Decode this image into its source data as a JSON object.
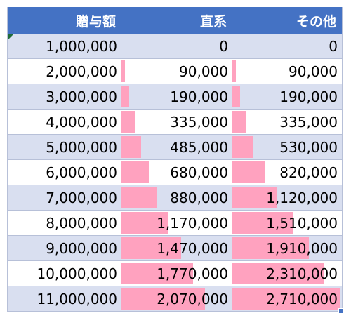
{
  "headers": [
    "贈与額",
    "直系",
    "その他"
  ],
  "max_bar_value": 2710000,
  "colors": {
    "header": "#4472c4",
    "band": "#d9dff0",
    "bar": "#ffa2bf"
  },
  "rows": [
    {
      "gift": "1,000,000",
      "direct": "0",
      "other": "0",
      "direct_value": 0,
      "other_value": 0
    },
    {
      "gift": "2,000,000",
      "direct": "90,000",
      "other": "90,000",
      "direct_value": 90000,
      "other_value": 90000
    },
    {
      "gift": "3,000,000",
      "direct": "190,000",
      "other": "190,000",
      "direct_value": 190000,
      "other_value": 190000
    },
    {
      "gift": "4,000,000",
      "direct": "335,000",
      "other": "335,000",
      "direct_value": 335000,
      "other_value": 335000
    },
    {
      "gift": "5,000,000",
      "direct": "485,000",
      "other": "530,000",
      "direct_value": 485000,
      "other_value": 530000
    },
    {
      "gift": "6,000,000",
      "direct": "680,000",
      "other": "820,000",
      "direct_value": 680000,
      "other_value": 820000
    },
    {
      "gift": "7,000,000",
      "direct": "880,000",
      "other": "1,120,000",
      "direct_value": 880000,
      "other_value": 1120000
    },
    {
      "gift": "8,000,000",
      "direct": "1,170,000",
      "other": "1,510,000",
      "direct_value": 1170000,
      "other_value": 1510000
    },
    {
      "gift": "9,000,000",
      "direct": "1,470,000",
      "other": "1,910,000",
      "direct_value": 1470000,
      "other_value": 1910000
    },
    {
      "gift": "10,000,000",
      "direct": "1,770,000",
      "other": "2,310,000",
      "direct_value": 1770000,
      "other_value": 2310000
    },
    {
      "gift": "11,000,000",
      "direct": "2,070,000",
      "other": "2,710,000",
      "direct_value": 2070000,
      "other_value": 2710000
    }
  ]
}
